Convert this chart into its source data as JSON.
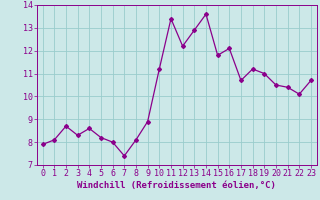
{
  "x": [
    0,
    1,
    2,
    3,
    4,
    5,
    6,
    7,
    8,
    9,
    10,
    11,
    12,
    13,
    14,
    15,
    16,
    17,
    18,
    19,
    20,
    21,
    22,
    23
  ],
  "y": [
    7.9,
    8.1,
    8.7,
    8.3,
    8.6,
    8.2,
    8.0,
    7.4,
    8.1,
    8.9,
    11.2,
    13.4,
    12.2,
    12.9,
    13.6,
    11.8,
    12.1,
    10.7,
    11.2,
    11.0,
    10.5,
    10.4,
    10.1,
    10.7
  ],
  "line_color": "#8B008B",
  "bg_color": "#cce8e8",
  "grid_color": "#99cccc",
  "xlabel": "Windchill (Refroidissement éolien,°C)",
  "ylim": [
    7,
    14
  ],
  "xlim_min": -0.5,
  "xlim_max": 23.5,
  "yticks": [
    7,
    8,
    9,
    10,
    11,
    12,
    13,
    14
  ],
  "xticks": [
    0,
    1,
    2,
    3,
    4,
    5,
    6,
    7,
    8,
    9,
    10,
    11,
    12,
    13,
    14,
    15,
    16,
    17,
    18,
    19,
    20,
    21,
    22,
    23
  ],
  "tick_color": "#8B008B",
  "xlabel_fontsize": 6.5,
  "tick_fontsize": 6.0,
  "label_color": "#8B008B",
  "spine_color": "#8B008B",
  "marker": "D",
  "markersize": 2.0,
  "linewidth": 0.9
}
